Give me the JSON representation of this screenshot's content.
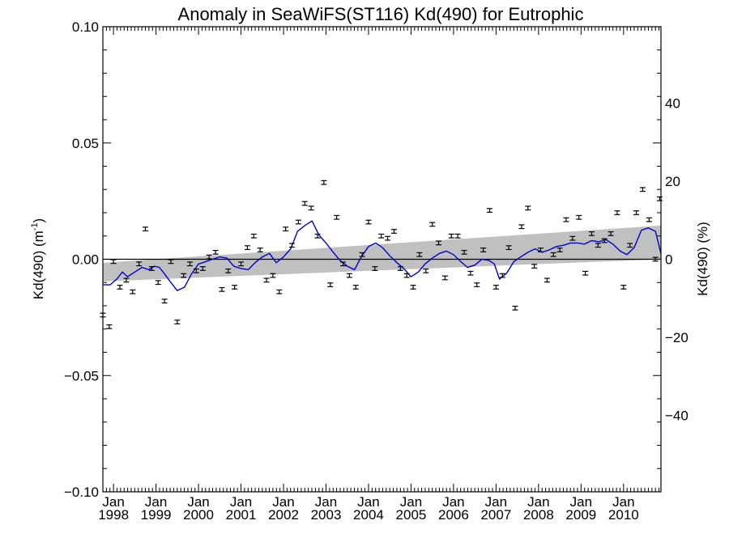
{
  "chart_data": {
    "type": "scatter",
    "title": "Anomaly in SeaWiFS(ST116) Kd(490) for Eutrophic",
    "ylabel_left": "Kd(490) (m",
    "ylabel_left_sup": "-1",
    "ylabel_left_end": ")",
    "ylabel_right": "Kd(490) (%)",
    "xlim": [
      1997.75,
      2010.88
    ],
    "ylim": [
      -0.1,
      0.1
    ],
    "ylim_right": [
      -59.6,
      59.6
    ],
    "yticks_left": [
      {
        "value": 0.1,
        "label": "0.10"
      },
      {
        "value": 0.05,
        "label": "0.05"
      },
      {
        "value": 0.0,
        "label": "0.00"
      },
      {
        "value": -0.05,
        "label": "−0.05"
      },
      {
        "value": -0.1,
        "label": "−0.10"
      }
    ],
    "yticks_right": [
      {
        "value": 40,
        "label": "40"
      },
      {
        "value": 20,
        "label": "20"
      },
      {
        "value": 0,
        "label": "0"
      },
      {
        "value": -20,
        "label": "−20"
      },
      {
        "value": -40,
        "label": "−40"
      }
    ],
    "xticks": [
      {
        "value": 1998.0,
        "month": "Jan",
        "year": "1998"
      },
      {
        "value": 1999.0,
        "month": "Jan",
        "year": "1999"
      },
      {
        "value": 2000.0,
        "month": "Jan",
        "year": "2000"
      },
      {
        "value": 2001.0,
        "month": "Jan",
        "year": "2001"
      },
      {
        "value": 2002.0,
        "month": "Jan",
        "year": "2002"
      },
      {
        "value": 2003.0,
        "month": "Jan",
        "year": "2003"
      },
      {
        "value": 2004.0,
        "month": "Jan",
        "year": "2004"
      },
      {
        "value": 2005.0,
        "month": "Jan",
        "year": "2005"
      },
      {
        "value": 2006.0,
        "month": "Jan",
        "year": "2006"
      },
      {
        "value": 2007.0,
        "month": "Jan",
        "year": "2007"
      },
      {
        "value": 2008.0,
        "month": "Jan",
        "year": "2008"
      },
      {
        "value": 2009.0,
        "month": "Jan",
        "year": "2009"
      },
      {
        "value": 2010.0,
        "month": "Jan",
        "year": "2010"
      }
    ],
    "zero_line": 0.0,
    "trend_band": {
      "x": [
        1997.75,
        2010.88
      ],
      "upper": [
        -0.0015,
        0.0145
      ],
      "lower": [
        -0.0095,
        0.0
      ],
      "color": "#c0c0c0"
    },
    "smoothed_series": {
      "color": "#0000cc",
      "x": [
        1997.75,
        1997.92,
        1998.08,
        1998.21,
        1998.33,
        1998.5,
        1998.67,
        1998.83,
        1998.96,
        1999.08,
        1999.21,
        1999.33,
        1999.5,
        1999.67,
        1999.83,
        2000.0,
        2000.17,
        2000.33,
        2000.5,
        2000.67,
        2000.83,
        2001.0,
        2001.17,
        2001.33,
        2001.5,
        2001.67,
        2001.83,
        2002.0,
        2002.17,
        2002.33,
        2002.5,
        2002.67,
        2002.83,
        2003.0,
        2003.17,
        2003.33,
        2003.5,
        2003.67,
        2003.83,
        2004.0,
        2004.17,
        2004.33,
        2004.5,
        2004.67,
        2004.83,
        2005.0,
        2005.17,
        2005.33,
        2005.5,
        2005.67,
        2005.83,
        2006.0,
        2006.17,
        2006.33,
        2006.5,
        2006.67,
        2006.83,
        2006.96,
        2007.08,
        2007.25,
        2007.42,
        2007.58,
        2007.75,
        2007.92,
        2008.08,
        2008.25,
        2008.42,
        2008.58,
        2008.75,
        2008.92,
        2009.08,
        2009.25,
        2009.42,
        2009.58,
        2009.75,
        2009.92,
        2010.08,
        2010.25,
        2010.42,
        2010.58,
        2010.75,
        2010.88
      ],
      "y": [
        -0.011,
        -0.011,
        -0.0085,
        -0.0055,
        -0.0075,
        -0.0055,
        -0.0035,
        -0.0045,
        -0.003,
        -0.0035,
        -0.0065,
        -0.0095,
        -0.0135,
        -0.012,
        -0.0065,
        -0.002,
        -0.001,
        0.0,
        0.001,
        0.0005,
        -0.003,
        -0.004,
        -0.0045,
        -0.0015,
        0.001,
        0.0025,
        -0.0015,
        0.001,
        0.0045,
        0.012,
        0.0145,
        0.0165,
        0.0105,
        0.007,
        0.003,
        -0.0005,
        -0.003,
        -0.0045,
        0.001,
        0.0055,
        0.007,
        0.005,
        0.0015,
        -0.0015,
        -0.004,
        -0.0075,
        -0.0055,
        -0.002,
        0.0005,
        0.0025,
        0.0035,
        0.002,
        -0.001,
        -0.0035,
        -0.0025,
        0.0,
        -0.0005,
        -0.002,
        -0.0085,
        -0.006,
        -0.001,
        0.001,
        0.003,
        0.0045,
        0.003,
        0.004,
        0.0055,
        0.006,
        0.007,
        0.007,
        0.0065,
        0.008,
        0.0075,
        0.0085,
        0.0065,
        0.0035,
        0.002,
        0.005,
        0.0125,
        0.0135,
        0.012,
        0.0025
      ]
    },
    "points": {
      "x": [
        1997.75,
        1997.9,
        1998.0,
        1998.15,
        1998.3,
        1998.45,
        1998.6,
        1998.75,
        1998.9,
        1999.05,
        1999.2,
        1999.35,
        1999.5,
        1999.65,
        1999.8,
        1999.95,
        2000.1,
        2000.25,
        2000.4,
        2000.55,
        2000.7,
        2000.85,
        2001.0,
        2001.15,
        2001.3,
        2001.45,
        2001.6,
        2001.75,
        2001.9,
        2002.05,
        2002.2,
        2002.35,
        2002.5,
        2002.65,
        2002.8,
        2002.95,
        2003.1,
        2003.25,
        2003.4,
        2003.55,
        2003.7,
        2003.85,
        2004.0,
        2004.15,
        2004.3,
        2004.45,
        2004.6,
        2004.75,
        2004.9,
        2005.05,
        2005.2,
        2005.35,
        2005.5,
        2005.65,
        2005.8,
        2005.95,
        2006.1,
        2006.25,
        2006.4,
        2006.55,
        2006.7,
        2006.85,
        2007.0,
        2007.15,
        2007.3,
        2007.45,
        2007.6,
        2007.75,
        2007.9,
        2008.05,
        2008.2,
        2008.35,
        2008.5,
        2008.65,
        2008.8,
        2008.95,
        2009.1,
        2009.25,
        2009.4,
        2009.55,
        2009.7,
        2009.85,
        2010.0,
        2010.15,
        2010.3,
        2010.45,
        2010.6,
        2010.75,
        2010.85
      ],
      "y": [
        -0.024,
        -0.029,
        -0.001,
        -0.012,
        -0.009,
        -0.014,
        -0.002,
        0.013,
        -0.004,
        -0.01,
        -0.018,
        -0.001,
        -0.027,
        -0.007,
        -0.002,
        -0.005,
        -0.004,
        0.001,
        0.003,
        -0.013,
        -0.005,
        -0.012,
        -0.002,
        0.005,
        0.01,
        0.004,
        -0.009,
        -0.007,
        -0.014,
        0.013,
        0.006,
        0.016,
        0.024,
        0.022,
        0.01,
        0.033,
        -0.011,
        0.018,
        -0.002,
        -0.007,
        -0.012,
        0.002,
        0.016,
        -0.004,
        0.01,
        0.009,
        0.012,
        -0.004,
        -0.007,
        -0.012,
        0.002,
        -0.005,
        0.015,
        0.007,
        -0.008,
        0.01,
        0.01,
        0.003,
        -0.006,
        -0.011,
        0.004,
        0.021,
        -0.012,
        -0.007,
        0.005,
        -0.021,
        0.014,
        0.022,
        -0.003,
        0.004,
        -0.009,
        0.002,
        0.004,
        0.017,
        0.009,
        0.018,
        -0.006,
        0.011,
        0.006,
        0.008,
        0.011,
        0.02,
        -0.012,
        0.006,
        0.02,
        0.03,
        0.017,
        0.0,
        0.026
      ],
      "err": 0.0008
    }
  }
}
